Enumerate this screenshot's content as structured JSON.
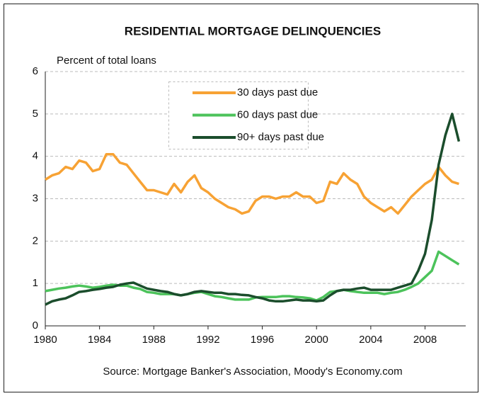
{
  "chart_data": {
    "type": "line",
    "title": "RESIDENTIAL MORTGAGE DELINQUENCIES",
    "y_label": "Percent of total loans",
    "source": "Source: Mortgage Banker's Association, Moody's Economy.com",
    "x": [
      1980,
      1980.5,
      1981,
      1981.5,
      1982,
      1982.5,
      1983,
      1983.5,
      1984,
      1984.5,
      1985,
      1985.5,
      1986,
      1986.5,
      1987,
      1987.5,
      1988,
      1988.5,
      1989,
      1989.5,
      1990,
      1990.5,
      1991,
      1991.5,
      1992,
      1992.5,
      1993,
      1993.5,
      1994,
      1994.5,
      1995,
      1995.5,
      1996,
      1996.5,
      1997,
      1997.5,
      1998,
      1998.5,
      1999,
      1999.5,
      2000,
      2000.5,
      2001,
      2001.5,
      2002,
      2002.5,
      2003,
      2003.5,
      2004,
      2004.5,
      2005,
      2005.5,
      2006,
      2006.5,
      2007,
      2007.5,
      2008,
      2008.5,
      2009,
      2009.5,
      2010,
      2010.5
    ],
    "series": [
      {
        "name": "30 days past due",
        "color": "#f7a234",
        "values": [
          3.45,
          3.55,
          3.6,
          3.75,
          3.7,
          3.9,
          3.85,
          3.65,
          3.7,
          4.05,
          4.05,
          3.85,
          3.8,
          3.6,
          3.4,
          3.2,
          3.2,
          3.15,
          3.1,
          3.35,
          3.15,
          3.4,
          3.55,
          3.25,
          3.15,
          3.0,
          2.9,
          2.8,
          2.75,
          2.65,
          2.7,
          2.95,
          3.05,
          3.05,
          3.0,
          3.05,
          3.05,
          3.15,
          3.05,
          3.05,
          2.9,
          2.95,
          3.4,
          3.35,
          3.6,
          3.45,
          3.35,
          3.05,
          2.9,
          2.8,
          2.7,
          2.8,
          2.65,
          2.85,
          3.05,
          3.2,
          3.35,
          3.45,
          3.75,
          3.55,
          3.4,
          3.35
        ]
      },
      {
        "name": "60 days past due",
        "color": "#4cc35b",
        "values": [
          0.82,
          0.85,
          0.88,
          0.9,
          0.93,
          0.95,
          0.93,
          0.9,
          0.92,
          0.95,
          0.97,
          0.95,
          0.95,
          0.9,
          0.87,
          0.8,
          0.78,
          0.75,
          0.75,
          0.75,
          0.72,
          0.75,
          0.78,
          0.8,
          0.75,
          0.7,
          0.68,
          0.65,
          0.62,
          0.62,
          0.62,
          0.67,
          0.68,
          0.68,
          0.68,
          0.7,
          0.7,
          0.68,
          0.67,
          0.65,
          0.6,
          0.68,
          0.8,
          0.82,
          0.85,
          0.82,
          0.8,
          0.78,
          0.78,
          0.78,
          0.75,
          0.78,
          0.8,
          0.85,
          0.92,
          1.0,
          1.15,
          1.3,
          1.75,
          1.65,
          1.55,
          1.45
        ]
      },
      {
        "name": "90+ days past due",
        "color": "#1b4d2c",
        "values": [
          0.5,
          0.58,
          0.62,
          0.65,
          0.72,
          0.8,
          0.82,
          0.85,
          0.87,
          0.9,
          0.92,
          0.97,
          1.0,
          1.02,
          0.95,
          0.88,
          0.85,
          0.82,
          0.8,
          0.75,
          0.72,
          0.75,
          0.8,
          0.82,
          0.8,
          0.78,
          0.78,
          0.75,
          0.75,
          0.73,
          0.72,
          0.68,
          0.65,
          0.6,
          0.58,
          0.58,
          0.6,
          0.62,
          0.6,
          0.6,
          0.58,
          0.6,
          0.72,
          0.82,
          0.85,
          0.85,
          0.88,
          0.9,
          0.85,
          0.85,
          0.85,
          0.85,
          0.9,
          0.95,
          1.0,
          1.3,
          1.7,
          2.5,
          3.8,
          4.5,
          5.0,
          4.35
        ]
      }
    ],
    "xlim": [
      1980,
      2011
    ],
    "xticks": [
      1980,
      1984,
      1988,
      1992,
      1996,
      2000,
      2004,
      2008
    ],
    "ylim": [
      0,
      6
    ],
    "yticks": [
      0,
      1,
      2,
      3,
      4,
      5,
      6
    ],
    "grid": true
  }
}
